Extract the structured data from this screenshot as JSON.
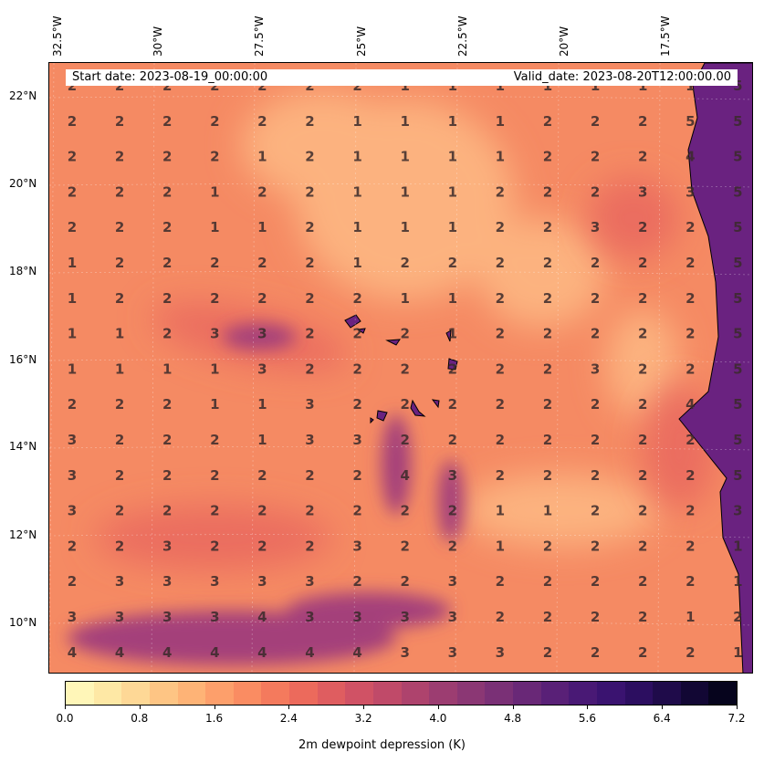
{
  "map": {
    "banner": {
      "start_date": "Start date: 2023-08-19_00:00:00",
      "valid_date": "Valid_date: 2023-08-20T12:00:00.00"
    },
    "longitude_labels": [
      "32.5°W",
      "30°W",
      "27.5°W",
      "25°W",
      "22.5°W",
      "20°W",
      "17.5°W"
    ],
    "latitude_labels": [
      "22°N",
      "20°N",
      "18°N",
      "16°N",
      "14°N",
      "12°N",
      "10°N"
    ],
    "value_grid": [
      [
        "2",
        "2",
        "2",
        "2",
        "2",
        "2",
        "2",
        "1",
        "1",
        "1",
        "1",
        "1",
        "1",
        "1",
        "5"
      ],
      [
        "2",
        "2",
        "2",
        "2",
        "2",
        "2",
        "1",
        "1",
        "1",
        "1",
        "2",
        "2",
        "2",
        "5",
        "5"
      ],
      [
        "2",
        "2",
        "2",
        "2",
        "1",
        "2",
        "1",
        "1",
        "1",
        "1",
        "2",
        "2",
        "2",
        "4",
        "5"
      ],
      [
        "2",
        "2",
        "2",
        "1",
        "2",
        "2",
        "1",
        "1",
        "1",
        "2",
        "2",
        "2",
        "3",
        "3",
        "5"
      ],
      [
        "2",
        "2",
        "2",
        "1",
        "1",
        "2",
        "1",
        "1",
        "1",
        "2",
        "2",
        "3",
        "2",
        "2",
        "5"
      ],
      [
        "1",
        "2",
        "2",
        "2",
        "2",
        "2",
        "1",
        "2",
        "2",
        "2",
        "2",
        "2",
        "2",
        "2",
        "5"
      ],
      [
        "1",
        "2",
        "2",
        "2",
        "2",
        "2",
        "2",
        "1",
        "1",
        "2",
        "2",
        "2",
        "2",
        "2",
        "5"
      ],
      [
        "1",
        "1",
        "2",
        "3",
        "3",
        "2",
        "2",
        "2",
        "1",
        "2",
        "2",
        "2",
        "2",
        "2",
        "5"
      ],
      [
        "1",
        "1",
        "1",
        "1",
        "3",
        "2",
        "2",
        "2",
        "2",
        "2",
        "2",
        "3",
        "2",
        "2",
        "5"
      ],
      [
        "2",
        "2",
        "2",
        "1",
        "1",
        "3",
        "2",
        "2",
        "2",
        "2",
        "2",
        "2",
        "2",
        "4",
        "5"
      ],
      [
        "3",
        "2",
        "2",
        "2",
        "1",
        "3",
        "3",
        "2",
        "2",
        "2",
        "2",
        "2",
        "2",
        "2",
        "5"
      ],
      [
        "3",
        "2",
        "2",
        "2",
        "2",
        "2",
        "2",
        "4",
        "3",
        "2",
        "2",
        "2",
        "2",
        "2",
        "5"
      ],
      [
        "3",
        "2",
        "2",
        "2",
        "2",
        "2",
        "2",
        "2",
        "2",
        "1",
        "1",
        "2",
        "2",
        "2",
        "3"
      ],
      [
        "2",
        "2",
        "3",
        "2",
        "2",
        "2",
        "3",
        "2",
        "2",
        "1",
        "2",
        "2",
        "2",
        "2",
        "1"
      ],
      [
        "2",
        "3",
        "3",
        "3",
        "3",
        "3",
        "2",
        "2",
        "3",
        "2",
        "2",
        "2",
        "2",
        "2",
        "1"
      ],
      [
        "3",
        "3",
        "3",
        "3",
        "4",
        "3",
        "3",
        "3",
        "3",
        "2",
        "2",
        "2",
        "2",
        "1",
        "2"
      ],
      [
        "4",
        "4",
        "4",
        "4",
        "4",
        "4",
        "4",
        "3",
        "3",
        "3",
        "2",
        "2",
        "2",
        "2",
        "1"
      ]
    ],
    "field_colors": {
      "ocean_base": "#f58a63",
      "low": "#fcb27f",
      "high": "#a4407a",
      "land": "#6a2280"
    }
  },
  "colorbar": {
    "title": "2m dewpoint depression (K)",
    "tick_labels": [
      "0.0",
      "0.8",
      "1.6",
      "2.4",
      "3.2",
      "4.0",
      "4.8",
      "5.6",
      "6.4",
      "7.2"
    ],
    "colors": [
      "#fff6b8",
      "#fee8a5",
      "#fed896",
      "#fec584",
      "#feb376",
      "#fd9f6b",
      "#fa8c62",
      "#f47a5d",
      "#ec6a5c",
      "#df5d60",
      "#d05265",
      "#c04a69",
      "#ae436d",
      "#9c3d71",
      "#8b3774",
      "#7a3076",
      "#692877",
      "#592077",
      "#491975",
      "#3a1370",
      "#2c0e60",
      "#1f0b4a",
      "#120734",
      "#06041d"
    ]
  }
}
